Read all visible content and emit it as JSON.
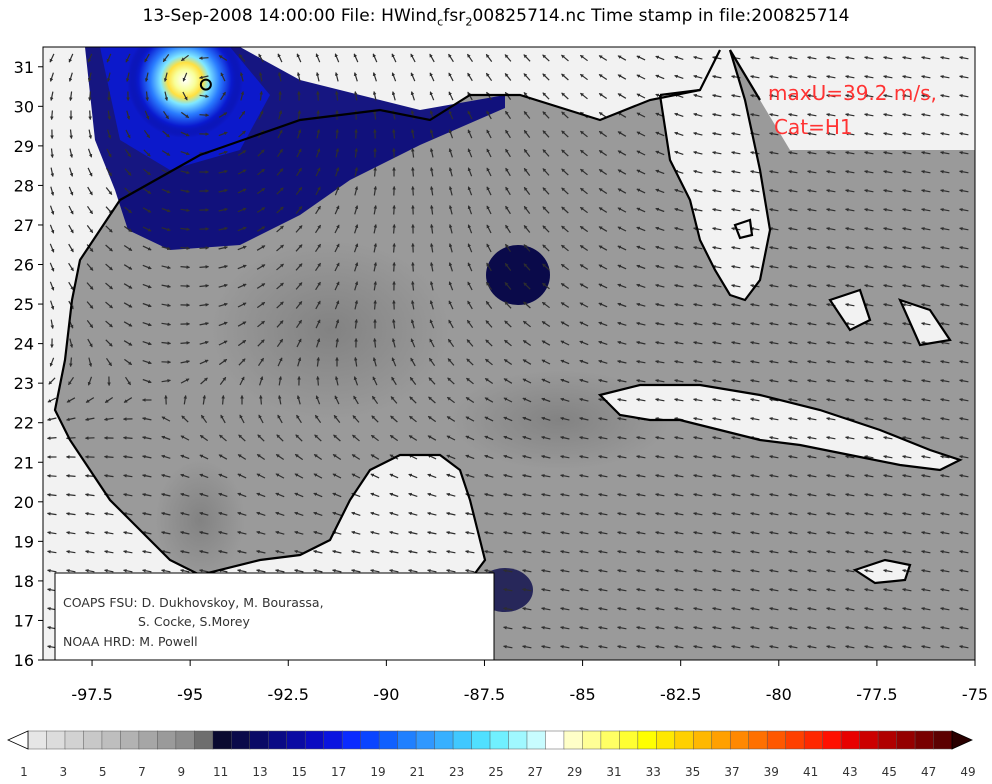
{
  "title": {
    "prefix": "13-Sep-2008 14:00:00 File: HWind",
    "sub1": "c",
    "mid": "fsr",
    "sub2": "2",
    "suffix": "00825714.nc Time stamp in file:200825714"
  },
  "map": {
    "lon_range": [
      -98.75,
      -75
    ],
    "lat_range": [
      16,
      31.5
    ],
    "lat_ticks": [
      "31",
      "30",
      "29",
      "28",
      "27",
      "26",
      "25",
      "24",
      "23",
      "22",
      "21",
      "20",
      "19",
      "18",
      "17",
      "16"
    ],
    "lon_ticks": [
      "-97.5",
      "-95",
      "-92.5",
      "-90",
      "-87.5",
      "-85",
      "-82.5",
      "-80",
      "-77.5",
      "-75"
    ],
    "storm_center": {
      "lon": -94.6,
      "lat": 30.55
    },
    "colors": {
      "land": "#f2f2f2",
      "ocean_low": "#9a9a9a",
      "coast": "#000000",
      "vector": "#2e2e2e"
    }
  },
  "annotation": {
    "max_line1": "maxU=39.2 m/s,",
    "max_line2": "Cat=H1",
    "color": "#ff3333"
  },
  "credits": {
    "line1": "COAPS FSU: D. Dukhovskoy, M. Bourassa,",
    "line2": "S. Cocke, S.Morey",
    "line3": "NOAA HRD:  M. Powell"
  },
  "colorbar": {
    "ticks": [
      "1",
      "3",
      "5",
      "7",
      "9",
      "11",
      "13",
      "15",
      "17",
      "19",
      "21",
      "23",
      "25",
      "27",
      "29",
      "31",
      "33",
      "35",
      "37",
      "39",
      "41",
      "43",
      "45",
      "47",
      "49"
    ],
    "colors": [
      "#e6e6e6",
      "#dcdcdc",
      "#d2d2d2",
      "#c8c8c8",
      "#bebebe",
      "#b2b2b2",
      "#a6a6a6",
      "#9a9a9a",
      "#8c8c8c",
      "#6e6e6e",
      "#0a0a30",
      "#0a0a4a",
      "#0a0a66",
      "#0a0a85",
      "#0a0aa3",
      "#0a0ac2",
      "#0a14e0",
      "#0a2aff",
      "#0a44ff",
      "#1060ff",
      "#2080ff",
      "#3098ff",
      "#38b0ff",
      "#40c8ff",
      "#50e0ff",
      "#70f0ff",
      "#a0f8ff",
      "#c8fcff",
      "#ffffff",
      "#ffffc8",
      "#ffff96",
      "#ffff64",
      "#ffff32",
      "#ffff00",
      "#ffe800",
      "#ffd000",
      "#ffb800",
      "#ffa000",
      "#ff8800",
      "#ff7000",
      "#ff5800",
      "#ff4000",
      "#ff2800",
      "#ff1000",
      "#e80000",
      "#cc0000",
      "#b00000",
      "#940000",
      "#780000",
      "#5c0000"
    ]
  }
}
